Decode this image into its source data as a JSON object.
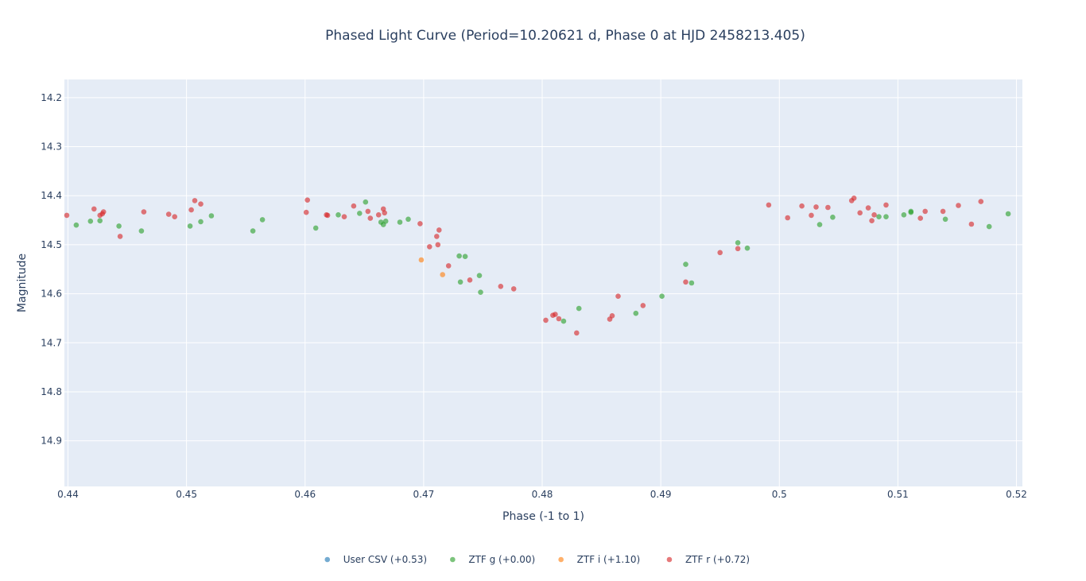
{
  "chart_data": {
    "type": "scatter",
    "title": "Phased Light Curve (Period=10.20621 d, Phase 0 at HJD 2458213.405)",
    "xlabel": "Phase (-1 to 1)",
    "ylabel": "Magnitude",
    "xlim": [
      0.4397,
      0.5205
    ],
    "ylim": [
      14.993,
      14.163
    ],
    "y_reversed": true,
    "grid": true,
    "legend_position": "bottom-center",
    "plot_background": "#e5ecf6",
    "x_ticks": [
      0.44,
      0.45,
      0.46,
      0.47,
      0.48,
      0.49,
      0.5,
      0.51,
      0.52
    ],
    "x_tick_labels": [
      "0.44",
      "0.45",
      "0.46",
      "0.47",
      "0.48",
      "0.49",
      "0.5",
      "0.51",
      "0.52"
    ],
    "y_ticks": [
      14.2,
      14.3,
      14.4,
      14.5,
      14.6,
      14.7,
      14.8,
      14.9
    ],
    "y_tick_labels": [
      "14.2",
      "14.3",
      "14.4",
      "14.5",
      "14.6",
      "14.7",
      "14.8",
      "14.9"
    ],
    "series": [
      {
        "name": "User CSV (+0.53)",
        "color": "#1f77b4",
        "points": []
      },
      {
        "name": "ZTF g (+0.00)",
        "color": "#2ca02c",
        "points": [
          [
            0.4407,
            14.46
          ],
          [
            0.4419,
            14.452
          ],
          [
            0.4427,
            14.451
          ],
          [
            0.4443,
            14.462
          ],
          [
            0.4462,
            14.472
          ],
          [
            0.4503,
            14.462
          ],
          [
            0.4512,
            14.453
          ],
          [
            0.4521,
            14.441
          ],
          [
            0.4556,
            14.472
          ],
          [
            0.4564,
            14.449
          ],
          [
            0.4609,
            14.466
          ],
          [
            0.4628,
            14.439
          ],
          [
            0.4646,
            14.436
          ],
          [
            0.4651,
            14.413
          ],
          [
            0.4664,
            14.454
          ],
          [
            0.4666,
            14.459
          ],
          [
            0.4668,
            14.452
          ],
          [
            0.468,
            14.454
          ],
          [
            0.4687,
            14.448
          ],
          [
            0.473,
            14.523
          ],
          [
            0.4731,
            14.576
          ],
          [
            0.4735,
            14.524
          ],
          [
            0.4747,
            14.563
          ],
          [
            0.4748,
            14.597
          ],
          [
            0.4818,
            14.656
          ],
          [
            0.4831,
            14.63
          ],
          [
            0.4879,
            14.64
          ],
          [
            0.4901,
            14.605
          ],
          [
            0.4921,
            14.54
          ],
          [
            0.4926,
            14.578
          ],
          [
            0.4965,
            14.496
          ],
          [
            0.4973,
            14.507
          ],
          [
            0.5034,
            14.459
          ],
          [
            0.5045,
            14.444
          ],
          [
            0.5084,
            14.443
          ],
          [
            0.509,
            14.443
          ],
          [
            0.5105,
            14.439
          ],
          [
            0.5111,
            14.432
          ],
          [
            0.5111,
            14.434
          ],
          [
            0.514,
            14.448
          ],
          [
            0.5177,
            14.463
          ],
          [
            0.5193,
            14.437
          ]
        ]
      },
      {
        "name": "ZTF i (+1.10)",
        "color": "#ff7f0e",
        "points": [
          [
            0.4698,
            14.531
          ],
          [
            0.4716,
            14.561
          ]
        ]
      },
      {
        "name": "ZTF r (+0.72)",
        "color": "#d62728",
        "points": [
          [
            0.4399,
            14.44
          ],
          [
            0.4422,
            14.427
          ],
          [
            0.4427,
            14.44
          ],
          [
            0.4429,
            14.437
          ],
          [
            0.443,
            14.433
          ],
          [
            0.4444,
            14.483
          ],
          [
            0.4464,
            14.433
          ],
          [
            0.4485,
            14.438
          ],
          [
            0.449,
            14.443
          ],
          [
            0.4504,
            14.429
          ],
          [
            0.4507,
            14.41
          ],
          [
            0.4512,
            14.417
          ],
          [
            0.4601,
            14.434
          ],
          [
            0.4602,
            14.409
          ],
          [
            0.4618,
            14.439
          ],
          [
            0.4619,
            14.44
          ],
          [
            0.4633,
            14.443
          ],
          [
            0.4641,
            14.421
          ],
          [
            0.4653,
            14.432
          ],
          [
            0.4655,
            14.446
          ],
          [
            0.4662,
            14.439
          ],
          [
            0.4666,
            14.427
          ],
          [
            0.4667,
            14.435
          ],
          [
            0.4697,
            14.457
          ],
          [
            0.4705,
            14.504
          ],
          [
            0.4711,
            14.483
          ],
          [
            0.4712,
            14.5
          ],
          [
            0.4713,
            14.47
          ],
          [
            0.4721,
            14.543
          ],
          [
            0.4739,
            14.572
          ],
          [
            0.4765,
            14.585
          ],
          [
            0.4776,
            14.59
          ],
          [
            0.4803,
            14.654
          ],
          [
            0.4809,
            14.644
          ],
          [
            0.4811,
            14.642
          ],
          [
            0.4814,
            14.651
          ],
          [
            0.4829,
            14.68
          ],
          [
            0.4857,
            14.652
          ],
          [
            0.4859,
            14.645
          ],
          [
            0.4864,
            14.605
          ],
          [
            0.4885,
            14.624
          ],
          [
            0.4921,
            14.576
          ],
          [
            0.495,
            14.516
          ],
          [
            0.4965,
            14.508
          ],
          [
            0.4991,
            14.419
          ],
          [
            0.5007,
            14.445
          ],
          [
            0.5019,
            14.421
          ],
          [
            0.5027,
            14.44
          ],
          [
            0.5031,
            14.423
          ],
          [
            0.5041,
            14.424
          ],
          [
            0.5061,
            14.41
          ],
          [
            0.5063,
            14.405
          ],
          [
            0.5068,
            14.435
          ],
          [
            0.5075,
            14.425
          ],
          [
            0.5078,
            14.451
          ],
          [
            0.508,
            14.439
          ],
          [
            0.509,
            14.419
          ],
          [
            0.5119,
            14.446
          ],
          [
            0.5123,
            14.432
          ],
          [
            0.5138,
            14.432
          ],
          [
            0.5151,
            14.42
          ],
          [
            0.5162,
            14.458
          ],
          [
            0.517,
            14.412
          ]
        ]
      }
    ]
  }
}
